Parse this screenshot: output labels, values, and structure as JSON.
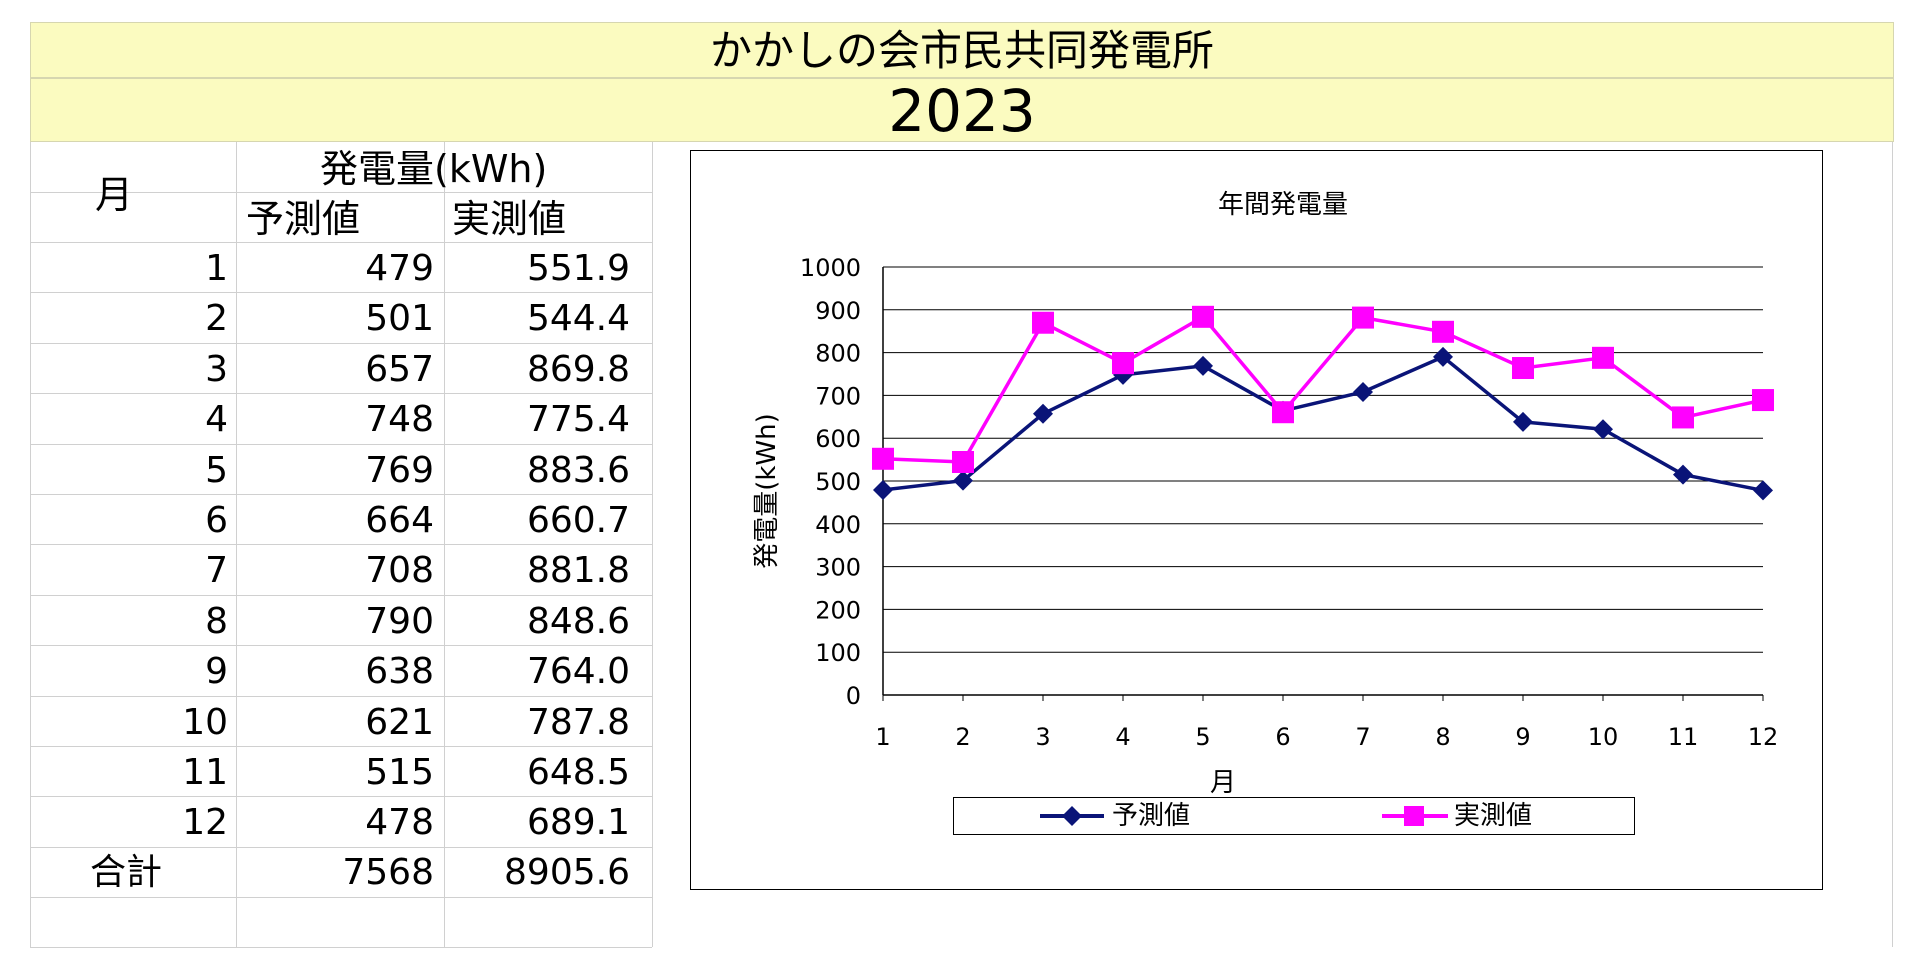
{
  "header": {
    "title": "かかしの会市民共同発電所",
    "year": "2023"
  },
  "table": {
    "col_month": "月",
    "col_group": "発電量(kWh)",
    "col_forecast": "予測値",
    "col_actual": "実測値",
    "rows": [
      {
        "month": "1",
        "forecast": "479",
        "actual": "551.9"
      },
      {
        "month": "2",
        "forecast": "501",
        "actual": "544.4"
      },
      {
        "month": "3",
        "forecast": "657",
        "actual": "869.8"
      },
      {
        "month": "4",
        "forecast": "748",
        "actual": "775.4"
      },
      {
        "month": "5",
        "forecast": "769",
        "actual": "883.6"
      },
      {
        "month": "6",
        "forecast": "664",
        "actual": "660.7"
      },
      {
        "month": "7",
        "forecast": "708",
        "actual": "881.8"
      },
      {
        "month": "8",
        "forecast": "790",
        "actual": "848.6"
      },
      {
        "month": "9",
        "forecast": "638",
        "actual": "764.0"
      },
      {
        "month": "10",
        "forecast": "621",
        "actual": "787.8"
      },
      {
        "month": "11",
        "forecast": "515",
        "actual": "648.5"
      },
      {
        "month": "12",
        "forecast": "478",
        "actual": "689.1"
      }
    ],
    "total_label": "合計",
    "total_forecast": "7568",
    "total_actual": "8905.6"
  },
  "chart_data": {
    "type": "line",
    "title": "年間発電量",
    "xlabel": "月",
    "ylabel": "発電量(kWh)",
    "categories": [
      "1",
      "2",
      "3",
      "4",
      "5",
      "6",
      "7",
      "8",
      "9",
      "10",
      "11",
      "12"
    ],
    "ylim": [
      0,
      1000
    ],
    "yticks": [
      0,
      100,
      200,
      300,
      400,
      500,
      600,
      700,
      800,
      900,
      1000
    ],
    "grid": true,
    "legend_position": "bottom",
    "series": [
      {
        "name": "予測値",
        "color": "#0a1478",
        "marker": "diamond",
        "values": [
          479,
          501,
          657,
          748,
          769,
          664,
          708,
          790,
          638,
          621,
          515,
          478
        ]
      },
      {
        "name": "実測値",
        "color": "#ff00ff",
        "marker": "square",
        "values": [
          551.9,
          544.4,
          869.8,
          775.4,
          883.6,
          660.7,
          881.8,
          848.6,
          764.0,
          787.8,
          648.5,
          689.1
        ]
      }
    ]
  }
}
